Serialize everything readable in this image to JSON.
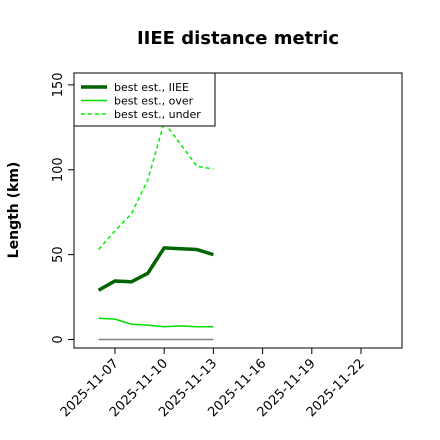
{
  "chart_data": {
    "type": "line",
    "title": "IIEE distance metric",
    "xlabel": "",
    "ylabel": "Length (km)",
    "x_type": "date",
    "x": [
      "2025-11-06",
      "2025-11-07",
      "2025-11-08",
      "2025-11-09",
      "2025-11-10",
      "2025-11-11",
      "2025-11-12",
      "2025-11-13"
    ],
    "xlim": [
      "2025-11-04T12:00",
      "2025-11-24T12:00"
    ],
    "ylim": [
      -5,
      157
    ],
    "x_ticks": [
      "2025-11-07",
      "2025-11-10",
      "2025-11-13",
      "2025-11-16",
      "2025-11-19",
      "2025-11-22"
    ],
    "y_ticks": [
      0,
      50,
      100,
      150
    ],
    "legend": {
      "position": "top-left",
      "entries": [
        "best est., IIEE",
        "best est., over",
        "best est., under"
      ]
    },
    "series": [
      {
        "name": "best est., IIEE",
        "color": "#006400",
        "style": "solid-thick",
        "values": [
          29,
          34.5,
          34,
          39,
          54,
          53.5,
          53,
          50
        ]
      },
      {
        "name": "best est., over",
        "color": "#00dd00",
        "style": "solid",
        "values": [
          12.5,
          12,
          9,
          8.5,
          7.5,
          8,
          7.5,
          7.5
        ]
      },
      {
        "name": "best est., under",
        "color": "#00ee00",
        "style": "dashed",
        "values": [
          53,
          64,
          74,
          94,
          128,
          115,
          102,
          100.5
        ]
      }
    ],
    "reference_line": {
      "color": "#808080",
      "values": [
        0,
        0,
        0,
        0,
        0,
        0,
        0,
        0
      ]
    }
  }
}
